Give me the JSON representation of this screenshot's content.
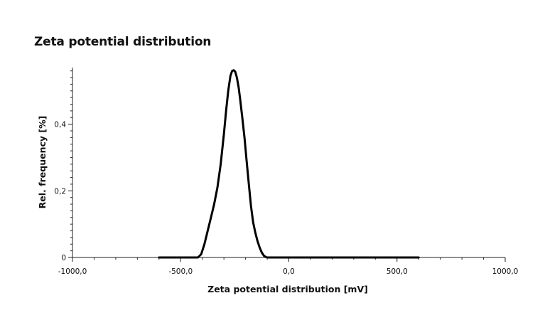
{
  "chart_data": {
    "type": "line",
    "title": "Zeta potential distribution",
    "xlabel": "Zeta potential distribution [mV]",
    "ylabel": "Rel. frequency [%]",
    "xlim": [
      -1000,
      1000
    ],
    "ylim": [
      0,
      0.57
    ],
    "x_ticks": [
      -1000,
      -500,
      0,
      500,
      1000
    ],
    "x_tick_labels": [
      "-1000,0",
      "-500,0",
      "0,0",
      "500,0",
      "1000,0"
    ],
    "y_ticks": [
      0,
      0.2,
      0.4
    ],
    "y_tick_labels": [
      "0",
      "0,2",
      "0,4"
    ],
    "grid": false,
    "line_color": "#000000",
    "series": [
      {
        "x": [
          -600,
          -420,
          -405,
          -390,
          -375,
          -360,
          -345,
          -330,
          -315,
          -300,
          -290,
          -280,
          -270,
          -262,
          -255,
          -248,
          -240,
          -232,
          -225,
          -215,
          -205,
          -195,
          -185,
          -175,
          -165,
          -155,
          -145,
          -135,
          -125,
          -115,
          -105,
          -100,
          -95,
          0,
          300,
          600
        ],
        "y": [
          0,
          0,
          0.01,
          0.04,
          0.08,
          0.12,
          0.16,
          0.21,
          0.28,
          0.37,
          0.44,
          0.5,
          0.545,
          0.56,
          0.562,
          0.558,
          0.54,
          0.51,
          0.475,
          0.42,
          0.36,
          0.29,
          0.22,
          0.155,
          0.105,
          0.075,
          0.05,
          0.03,
          0.015,
          0.005,
          0.001,
          0,
          0,
          0,
          0,
          0
        ]
      }
    ]
  }
}
